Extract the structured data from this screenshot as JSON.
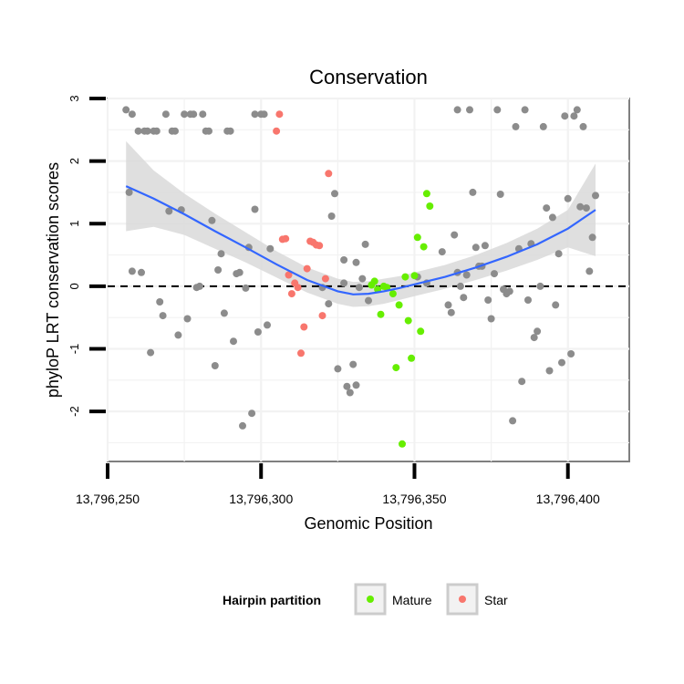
{
  "chart_data": {
    "type": "scatter",
    "title": "Conservation",
    "xlabel": "Genomic Position",
    "ylabel": "phyloP LRT conservation scores",
    "xlim": [
      13796250,
      13796420
    ],
    "ylim": [
      -2.8,
      3
    ],
    "x_ticks": [
      13796250,
      13796300,
      13796350,
      13796400
    ],
    "x_tick_labels": [
      "13,796,250",
      "13,796,300",
      "13,796,350",
      "13,796,400"
    ],
    "y_ticks": [
      -2,
      -1,
      0,
      1,
      2,
      3
    ],
    "y_tick_labels": [
      "-2",
      "-1",
      "0",
      "1",
      "2",
      "3"
    ],
    "grid": true,
    "reference_line": {
      "y": 0,
      "style": "dashed"
    },
    "legend": {
      "title": "Hairpin partition",
      "position": "bottom",
      "entries": [
        {
          "label": "Mature",
          "color": "#66ee00"
        },
        {
          "label": "Star",
          "color": "#f8766d"
        }
      ]
    },
    "colors": {
      "other": "#8c8c8c",
      "Mature": "#66ee00",
      "Star": "#f8766d",
      "smooth": "#3366ff",
      "band": "#d9d9d9"
    },
    "series": [
      {
        "group": "other",
        "points": [
          [
            13796256,
            2.82
          ],
          [
            13796257,
            1.5
          ],
          [
            13796258,
            2.75
          ],
          [
            13796258,
            0.24
          ],
          [
            13796260,
            2.48
          ],
          [
            13796261,
            0.22
          ],
          [
            13796262,
            2.48
          ],
          [
            13796263,
            2.48
          ],
          [
            13796265,
            2.48
          ],
          [
            13796266,
            2.48
          ],
          [
            13796264,
            -1.06
          ],
          [
            13796267,
            -0.25
          ],
          [
            13796268,
            -0.47
          ],
          [
            13796269,
            2.75
          ],
          [
            13796270,
            1.2
          ],
          [
            13796271,
            2.48
          ],
          [
            13796272,
            2.48
          ],
          [
            13796273,
            -0.78
          ],
          [
            13796274,
            1.22
          ],
          [
            13796275,
            2.75
          ],
          [
            13796276,
            -0.52
          ],
          [
            13796277,
            2.75
          ],
          [
            13796278,
            2.75
          ],
          [
            13796279,
            -0.02
          ],
          [
            13796280,
            0
          ],
          [
            13796281,
            2.75
          ],
          [
            13796282,
            2.48
          ],
          [
            13796283,
            2.48
          ],
          [
            13796284,
            1.05
          ],
          [
            13796285,
            -1.27
          ],
          [
            13796286,
            0.26
          ],
          [
            13796287,
            0.52
          ],
          [
            13796288,
            -0.43
          ],
          [
            13796289,
            2.48
          ],
          [
            13796290,
            2.48
          ],
          [
            13796291,
            -0.88
          ],
          [
            13796292,
            0.2
          ],
          [
            13796293,
            0.22
          ],
          [
            13796294,
            -2.23
          ],
          [
            13796295,
            -0.03
          ],
          [
            13796296,
            0.62
          ],
          [
            13796297,
            -2.03
          ],
          [
            13796298,
            1.23
          ],
          [
            13796298,
            2.75
          ],
          [
            13796299,
            -0.73
          ],
          [
            13796300,
            2.75
          ],
          [
            13796301,
            2.75
          ],
          [
            13796302,
            -0.62
          ],
          [
            13796303,
            0.6
          ],
          [
            13796320,
            -0.02
          ],
          [
            13796322,
            -0.28
          ],
          [
            13796323,
            1.12
          ],
          [
            13796324,
            1.48
          ],
          [
            13796325,
            -1.32
          ],
          [
            13796327,
            0.42
          ],
          [
            13796327,
            0.05
          ],
          [
            13796328,
            -1.6
          ],
          [
            13796329,
            -1.7
          ],
          [
            13796330,
            -1.25
          ],
          [
            13796331,
            -1.58
          ],
          [
            13796331,
            0.38
          ],
          [
            13796332,
            -0.02
          ],
          [
            13796333,
            0.12
          ],
          [
            13796334,
            0.67
          ],
          [
            13796335,
            -0.23
          ],
          [
            13796351,
            0.15
          ],
          [
            13796354,
            0.05
          ],
          [
            13796359,
            0.55
          ],
          [
            13796361,
            -0.3
          ],
          [
            13796362,
            -0.42
          ],
          [
            13796363,
            0.82
          ],
          [
            13796364,
            0.22
          ],
          [
            13796364,
            2.82
          ],
          [
            13796365,
            0
          ],
          [
            13796366,
            -0.18
          ],
          [
            13796367,
            0.18
          ],
          [
            13796368,
            2.82
          ],
          [
            13796369,
            1.5
          ],
          [
            13796370,
            0.62
          ],
          [
            13796371,
            0.32
          ],
          [
            13796372,
            0.32
          ],
          [
            13796373,
            0.65
          ],
          [
            13796374,
            -0.22
          ],
          [
            13796375,
            -0.52
          ],
          [
            13796376,
            0.2
          ],
          [
            13796377,
            2.82
          ],
          [
            13796378,
            1.47
          ],
          [
            13796379,
            -0.05
          ],
          [
            13796380,
            -0.12
          ],
          [
            13796381,
            -0.08
          ],
          [
            13796382,
            -2.15
          ],
          [
            13796383,
            2.55
          ],
          [
            13796384,
            0.6
          ],
          [
            13796385,
            -1.52
          ],
          [
            13796386,
            2.82
          ],
          [
            13796387,
            -0.22
          ],
          [
            13796388,
            0.68
          ],
          [
            13796389,
            -0.82
          ],
          [
            13796390,
            -0.72
          ],
          [
            13796391,
            0
          ],
          [
            13796392,
            2.55
          ],
          [
            13796393,
            1.25
          ],
          [
            13796394,
            -1.35
          ],
          [
            13796395,
            1.1
          ],
          [
            13796396,
            -0.3
          ],
          [
            13796397,
            0.52
          ],
          [
            13796398,
            -1.22
          ],
          [
            13796399,
            2.72
          ],
          [
            13796400,
            1.4
          ],
          [
            13796401,
            -1.08
          ],
          [
            13796402,
            2.72
          ],
          [
            13796403,
            2.82
          ],
          [
            13796404,
            1.27
          ],
          [
            13796405,
            2.55
          ],
          [
            13796406,
            1.25
          ],
          [
            13796407,
            0.24
          ],
          [
            13796408,
            0.78
          ],
          [
            13796409,
            1.45
          ]
        ]
      },
      {
        "group": "Mature",
        "points": [
          [
            13796336,
            0.02
          ],
          [
            13796337,
            0.08
          ],
          [
            13796338,
            -0.05
          ],
          [
            13796339,
            -0.45
          ],
          [
            13796340,
            0
          ],
          [
            13796341,
            -0.02
          ],
          [
            13796343,
            -0.12
          ],
          [
            13796344,
            -1.3
          ],
          [
            13796345,
            -0.3
          ],
          [
            13796346,
            -2.52
          ],
          [
            13796347,
            0.15
          ],
          [
            13796348,
            -0.55
          ],
          [
            13796349,
            -1.15
          ],
          [
            13796350,
            0.17
          ],
          [
            13796351,
            0.78
          ],
          [
            13796352,
            -0.72
          ],
          [
            13796353,
            0.63
          ],
          [
            13796354,
            1.48
          ],
          [
            13796355,
            1.28
          ]
        ]
      },
      {
        "group": "Star",
        "points": [
          [
            13796305,
            2.48
          ],
          [
            13796306,
            2.75
          ],
          [
            13796307,
            0.75
          ],
          [
            13796308,
            0.76
          ],
          [
            13796309,
            0.18
          ],
          [
            13796310,
            -0.12
          ],
          [
            13796311,
            0.05
          ],
          [
            13796312,
            -0.02
          ],
          [
            13796313,
            -1.07
          ],
          [
            13796314,
            -0.65
          ],
          [
            13796315,
            0.28
          ],
          [
            13796316,
            0.72
          ],
          [
            13796317,
            0.7
          ],
          [
            13796318,
            0.66
          ],
          [
            13796319,
            0.65
          ],
          [
            13796320,
            -0.47
          ],
          [
            13796321,
            0.12
          ],
          [
            13796322,
            1.8
          ]
        ]
      }
    ],
    "smooth": {
      "x": [
        13796256,
        13796265,
        13796275,
        13796285,
        13796295,
        13796305,
        13796315,
        13796325,
        13796330,
        13796335,
        13796340,
        13796345,
        13796350,
        13796360,
        13796370,
        13796380,
        13796390,
        13796400,
        13796409
      ],
      "y": [
        1.6,
        1.4,
        1.15,
        0.88,
        0.62,
        0.35,
        0.1,
        -0.08,
        -0.13,
        -0.12,
        -0.08,
        -0.03,
        0.03,
        0.15,
        0.3,
        0.47,
        0.67,
        0.92,
        1.22
      ],
      "lower": [
        0.88,
        0.95,
        0.82,
        0.6,
        0.38,
        0.14,
        -0.1,
        -0.28,
        -0.33,
        -0.32,
        -0.28,
        -0.22,
        -0.16,
        -0.04,
        0.1,
        0.25,
        0.42,
        0.62,
        0.48
      ],
      "upper": [
        2.32,
        1.85,
        1.48,
        1.16,
        0.86,
        0.56,
        0.3,
        0.12,
        0.07,
        0.08,
        0.12,
        0.16,
        0.22,
        0.34,
        0.5,
        0.69,
        0.92,
        1.22,
        1.96
      ]
    }
  }
}
